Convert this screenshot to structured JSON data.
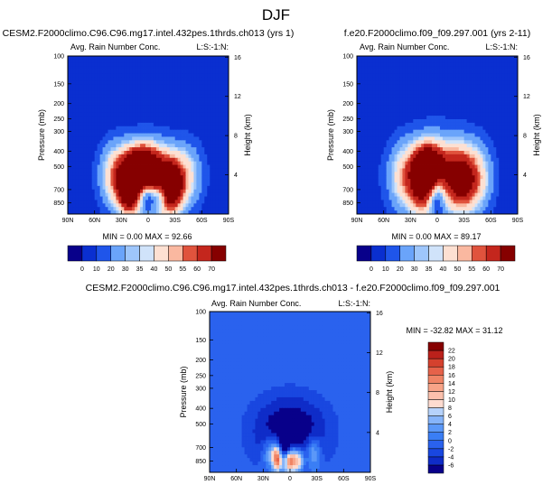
{
  "page_title": "DJF",
  "panels": [
    {
      "title": "CESM2.F2000climo.C96.C96.mg17.intel.432pes.1thrds.ch013 (yrs 1)",
      "subtitle_left": "Avg. Rain Number Conc.",
      "subtitle_right": "L:S:-1:N:",
      "stats": "MIN =  0.00  MAX =  92.66"
    },
    {
      "title": "f.e20.F2000climo.f09_f09.297.001 (yrs 2-11)",
      "subtitle_left": "Avg. Rain Number Conc.",
      "subtitle_right": "L:S:-1:N:",
      "stats": "MIN =  0.00  MAX =  89.17"
    },
    {
      "title": "CESM2.F2000climo.C96.C96.mg17.intel.432pes.1thrds.ch013 - f.e20.F2000climo.f09_f09.297.001",
      "subtitle_left": "Avg. Rain Number Conc.",
      "subtitle_right": "L:S:-1:N:",
      "stats": "MIN = -32.82  MAX =  31.12"
    }
  ],
  "colors": {
    "seq": [
      "#08008a",
      "#0a2fd0",
      "#1f55ea",
      "#3a7ef5",
      "#6aa4fa",
      "#9ec6fb",
      "#d0e3fa",
      "#fde0d2",
      "#fab8a0",
      "#f2876a",
      "#e0533d",
      "#c4261d",
      "#860000"
    ],
    "div": [
      "#08008a",
      "#0f2cc8",
      "#1947e0",
      "#2a62ee",
      "#3a7ef5",
      "#5b98f8",
      "#86b4fa",
      "#b6d2fb",
      "#e0ecfb",
      "#fddbd0",
      "#fbc0ac",
      "#f8a488",
      "#f08466",
      "#e6624a",
      "#d5412e",
      "#bb211b",
      "#860000"
    ]
  },
  "chart_data": [
    {
      "type": "heatmap",
      "panel": 0,
      "variable": "Avg. Rain Number Conc.",
      "xlabel": "",
      "x_ticks": [
        "90N",
        "60N",
        "30N",
        "0",
        "30S",
        "60S",
        "90S"
      ],
      "x_range": [
        90,
        -90
      ],
      "ylabel": "Pressure (mb)",
      "y_ticks": [
        100,
        150,
        200,
        250,
        300,
        400,
        500,
        700,
        850
      ],
      "y_range": [
        100,
        1000
      ],
      "y_scale": "log",
      "y2label": "Height (km)",
      "y2_ticks": [
        16,
        12,
        8,
        4
      ],
      "colorbar_levels": [
        0,
        10,
        20,
        30,
        35,
        40,
        50,
        55,
        60,
        70
      ],
      "min": 0.0,
      "max": 92.66,
      "features": [
        {
          "center_lat": 0,
          "center_p": 600,
          "amp": 66,
          "lat_width": 28,
          "logp_width": 0.17
        },
        {
          "center_lat": 6,
          "center_p": 480,
          "amp": 48,
          "lat_width": 14,
          "logp_width": 0.1
        },
        {
          "center_lat": 22,
          "center_p": 720,
          "amp": 48,
          "lat_width": 9,
          "logp_width": 0.13
        },
        {
          "center_lat": -26,
          "center_p": 700,
          "amp": 50,
          "lat_width": 10,
          "logp_width": 0.13
        },
        {
          "center_lat": 40,
          "center_p": 560,
          "amp": 28,
          "lat_width": 12,
          "logp_width": 0.16
        },
        {
          "center_lat": -45,
          "center_p": 560,
          "amp": 26,
          "lat_width": 14,
          "logp_width": 0.16
        },
        {
          "center_lat": 0,
          "center_p": 790,
          "amp": -40,
          "lat_width": 7,
          "logp_width": 0.06
        },
        {
          "center_lat": -14,
          "center_p": 760,
          "amp": -24,
          "lat_width": 5,
          "logp_width": 0.05
        }
      ]
    },
    {
      "type": "heatmap",
      "panel": 1,
      "variable": "Avg. Rain Number Conc.",
      "xlabel": "",
      "x_ticks": [
        "90N",
        "60N",
        "30N",
        "0",
        "30S",
        "60S",
        "90S"
      ],
      "x_range": [
        90,
        -90
      ],
      "ylabel": "Pressure (mb)",
      "y_ticks": [
        100,
        150,
        200,
        250,
        300,
        400,
        500,
        700,
        850
      ],
      "y_range": [
        100,
        1000
      ],
      "y_scale": "log",
      "y2label": "Height (km)",
      "y2_ticks": [
        16,
        12,
        8,
        4
      ],
      "colorbar_levels": [
        0,
        10,
        20,
        30,
        35,
        40,
        50,
        55,
        60,
        70
      ],
      "min": 0.0,
      "max": 89.17,
      "features": [
        {
          "center_lat": 0,
          "center_p": 560,
          "amp": 60,
          "lat_width": 32,
          "logp_width": 0.19
        },
        {
          "center_lat": 10,
          "center_p": 460,
          "amp": 36,
          "lat_width": 12,
          "logp_width": 0.09
        },
        {
          "center_lat": 18,
          "center_p": 680,
          "amp": 36,
          "lat_width": 10,
          "logp_width": 0.14
        },
        {
          "center_lat": -28,
          "center_p": 620,
          "amp": 42,
          "lat_width": 12,
          "logp_width": 0.15
        },
        {
          "center_lat": -48,
          "center_p": 600,
          "amp": 24,
          "lat_width": 12,
          "logp_width": 0.17
        },
        {
          "center_lat": 40,
          "center_p": 600,
          "amp": 22,
          "lat_width": 12,
          "logp_width": 0.16
        },
        {
          "center_lat": 0,
          "center_p": 800,
          "amp": -32,
          "lat_width": 6,
          "logp_width": 0.07
        }
      ]
    },
    {
      "type": "heatmap",
      "panel": 2,
      "variable": "Avg. Rain Number Conc.",
      "xlabel": "",
      "x_ticks": [
        "90N",
        "60N",
        "30N",
        "0",
        "30S",
        "60S",
        "90S"
      ],
      "x_range": [
        90,
        -90
      ],
      "ylabel": "Pressure (mb)",
      "y_ticks": [
        100,
        150,
        200,
        250,
        300,
        400,
        500,
        700,
        850
      ],
      "y_range": [
        100,
        1000
      ],
      "y_scale": "log",
      "y2label": "Height (km)",
      "y2_ticks": [
        16,
        12,
        8,
        4
      ],
      "colorbar_levels": [
        -6,
        -4,
        -2,
        0,
        2,
        4,
        6,
        8,
        10,
        12,
        14,
        16,
        18,
        20,
        22
      ],
      "colorbar_labels": [
        "22",
        "20",
        "18",
        "16",
        "14",
        "12",
        "10",
        "8",
        "6",
        "4",
        "2",
        "0",
        "-2",
        "-4",
        "-6"
      ],
      "min": -32.82,
      "max": 31.12,
      "features": [
        {
          "center_lat": 0,
          "center_p": 560,
          "amp": -9,
          "lat_width": 32,
          "logp_width": 0.17
        },
        {
          "center_lat": 0,
          "center_p": 800,
          "amp": 24,
          "lat_width": 5,
          "logp_width": 0.07
        },
        {
          "center_lat": 14,
          "center_p": 810,
          "amp": 20,
          "lat_width": 4,
          "logp_width": 0.06
        },
        {
          "center_lat": -10,
          "center_p": 840,
          "amp": 12,
          "lat_width": 4,
          "logp_width": 0.05
        },
        {
          "center_lat": -26,
          "center_p": 760,
          "amp": 8,
          "lat_width": 6,
          "logp_width": 0.07
        },
        {
          "center_lat": 22,
          "center_p": 760,
          "amp": 8,
          "lat_width": 6,
          "logp_width": 0.07
        },
        {
          "center_lat": 3,
          "center_p": 700,
          "amp": -16,
          "lat_width": 6,
          "logp_width": 0.05
        }
      ]
    }
  ]
}
